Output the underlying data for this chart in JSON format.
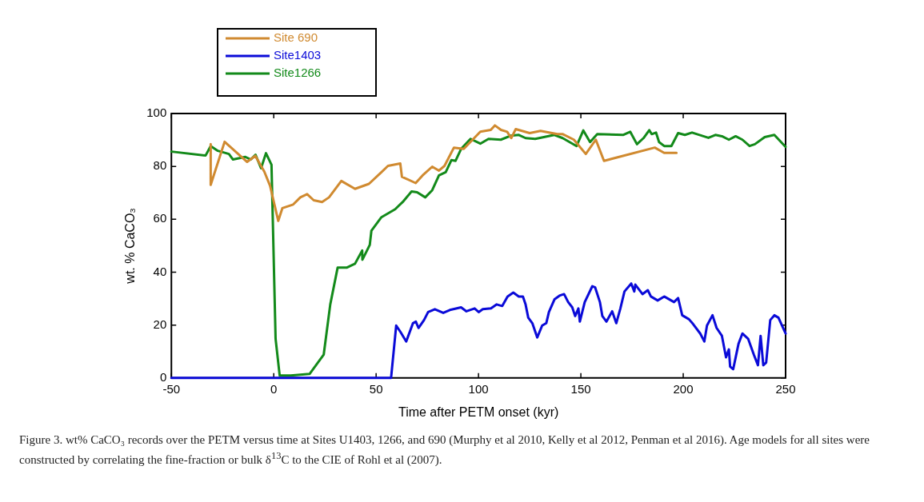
{
  "chart_data": {
    "type": "line",
    "xlabel": "Time after PETM onset (kyr)",
    "ylabel": "wt. % CaCO₃",
    "xlim": [
      -50,
      250
    ],
    "xticks": [
      -50,
      0,
      50,
      100,
      150,
      200,
      250
    ],
    "ylim": [
      0,
      100
    ],
    "yticks": [
      0,
      20,
      40,
      60,
      80,
      100
    ],
    "grid": false,
    "legend": "top left",
    "marker": "none",
    "line_style": "solid",
    "annotations": [
      "Figure 3. wt% CaCO₃ records over the PETM versus time at Sites U1403, 1266, and 690 (Murphy et al 2010, Kelly et al 2012, Penman et al 2016). Age models for all sites were constructed by correlating the fine-fraction or bulk δ$^{13}$C to the CIE of Rohl et al (2007)."
    ],
    "series": [
      {
        "name": "Site 690",
        "color": "#d08a30",
        "x": [
          -30.8,
          -30.8,
          -24,
          -13,
          -9,
          -4.6,
          -1.8,
          2.2,
          4.2,
          9.5,
          13,
          16.3,
          19.5,
          23.6,
          27,
          33,
          39.7,
          46.5,
          52.6,
          55.8,
          61.8,
          62.6,
          69.3,
          72.7,
          77.4,
          80.7,
          83.4,
          88,
          92.8,
          100.9,
          106,
          108,
          111,
          114,
          116,
          118.2,
          125,
          130.3,
          134.4,
          138.5,
          141.2,
          146.6,
          152.4,
          157.3,
          161.3,
          186.1,
          190.7,
          196.7
        ],
        "values": [
          88.4,
          73,
          89.3,
          81.7,
          84,
          78,
          72.7,
          59.4,
          64.2,
          65.6,
          68.3,
          69.5,
          67.2,
          66.5,
          68.3,
          74.5,
          71.5,
          73.4,
          77.8,
          80.2,
          81.1,
          76.1,
          73.7,
          76.6,
          79.9,
          78.4,
          80.2,
          87.1,
          86.6,
          93.1,
          93.8,
          95.5,
          93.8,
          93.1,
          90.7,
          94.1,
          92.6,
          93.4,
          92.8,
          92.2,
          92.2,
          90.1,
          84.7,
          90.1,
          82.1,
          87.1,
          85.1,
          85.1
        ]
      },
      {
        "name": "Site1403",
        "color": "#0a0ad8",
        "x": [
          -50,
          57.3,
          59.8,
          61.9,
          64.7,
          65.9,
          68,
          69.4,
          70.7,
          73.4,
          75.4,
          78.7,
          82.8,
          86,
          91.5,
          94.1,
          98.1,
          100.1,
          102.1,
          106.1,
          108.9,
          111.6,
          114.2,
          117,
          119.7,
          121.7,
          123,
          124.3,
          126.3,
          128.7,
          131.1,
          133.1,
          134.4,
          137.1,
          139.8,
          141.8,
          143.8,
          145.8,
          147.2,
          148.8,
          149.5,
          151.9,
          155.6,
          157,
          159.3,
          160.5,
          162.5,
          165.3,
          167.3,
          169.3,
          171.3,
          174.6,
          176.1,
          176.6,
          180.1,
          182.7,
          184.2,
          187.5,
          190.7,
          195.5,
          197.5,
          199.5,
          202.8,
          204.8,
          208.3,
          210.3,
          211.6,
          214.3,
          216.3,
          218.9,
          220.9,
          222.3,
          222.9,
          224.4,
          227,
          228.9,
          231.7,
          234.5,
          236.5,
          237.8,
          239.1,
          240.5,
          242.5,
          244.5,
          246.5,
          250
        ],
        "values": [
          0,
          0,
          19.8,
          17.4,
          13.8,
          16.3,
          20.7,
          21.3,
          18.9,
          21.9,
          24.9,
          26,
          24.6,
          25.7,
          26.7,
          25.2,
          26.3,
          24.9,
          26,
          26.3,
          27.8,
          27.2,
          30.8,
          32.3,
          30.8,
          30.8,
          27.8,
          22.8,
          20.7,
          15.3,
          19.8,
          20.7,
          24.9,
          29.7,
          31.2,
          31.7,
          28.7,
          26.7,
          23.4,
          26.3,
          21.3,
          28.7,
          34.7,
          34.2,
          28.7,
          23.4,
          21.3,
          25.2,
          20.7,
          26.3,
          32.7,
          35.7,
          32.7,
          35.3,
          31.7,
          33.2,
          30.8,
          29.3,
          30.8,
          28.7,
          30.2,
          23.7,
          22.2,
          20.4,
          16.8,
          13.8,
          19.8,
          23.7,
          18.9,
          15.9,
          7.8,
          10.8,
          4.3,
          3.3,
          12.9,
          16.8,
          14.8,
          8.8,
          4.8,
          15.9,
          4.8,
          5.8,
          21.9,
          23.7,
          22.8,
          16.8
        ]
      },
      {
        "name": "Site1266",
        "color": "#138a1a",
        "x": [
          -50,
          -33.3,
          -30.8,
          -27.3,
          -21.9,
          -19.9,
          -13.9,
          -11.2,
          -8.9,
          -6.2,
          -3.8,
          -1.1,
          0.9,
          2.9,
          8.3,
          17.5,
          24.4,
          27.6,
          31.2,
          35.6,
          39.7,
          43.2,
          43.3,
          46.9,
          47.7,
          52.6,
          59.3,
          63.3,
          67.3,
          70,
          74,
          77.4,
          80.7,
          84,
          86.8,
          88.8,
          91.5,
          96.1,
          100.9,
          104.9,
          110.9,
          115.7,
          119.7,
          123,
          127.7,
          137.1,
          141.1,
          147.9,
          151.2,
          154.5,
          158,
          170.6,
          174.1,
          177.4,
          180.6,
          183.4,
          184.6,
          186.7,
          188.2,
          190.7,
          194.2,
          197.5,
          200.8,
          204.3,
          212.3,
          215.7,
          218.9,
          222.3,
          225.6,
          228.9,
          232.4,
          235,
          239.8,
          244.5,
          250
        ],
        "values": [
          85.6,
          84.1,
          87.7,
          85.9,
          84.7,
          82.6,
          83.6,
          82.6,
          84.4,
          79.3,
          85,
          80.6,
          14.8,
          0.9,
          0.9,
          1.5,
          8.8,
          27.8,
          41.7,
          41.7,
          43.2,
          48.2,
          44.7,
          50.3,
          55.7,
          60.8,
          63.8,
          66.8,
          70.5,
          70.2,
          68.3,
          71,
          76.6,
          77.8,
          82.4,
          82.1,
          86.6,
          90.4,
          88.6,
          90.4,
          90.1,
          91.6,
          91.9,
          90.7,
          90.4,
          91.9,
          90.7,
          87.7,
          93.6,
          89.2,
          92.2,
          91.9,
          93.1,
          88.4,
          90.7,
          93.7,
          92.2,
          92.8,
          89.2,
          87.7,
          87.7,
          92.6,
          91.9,
          92.8,
          90.8,
          91.9,
          91.4,
          90.1,
          91.4,
          90.1,
          87.7,
          88.4,
          91.1,
          91.9,
          87.4
        ]
      }
    ]
  }
}
